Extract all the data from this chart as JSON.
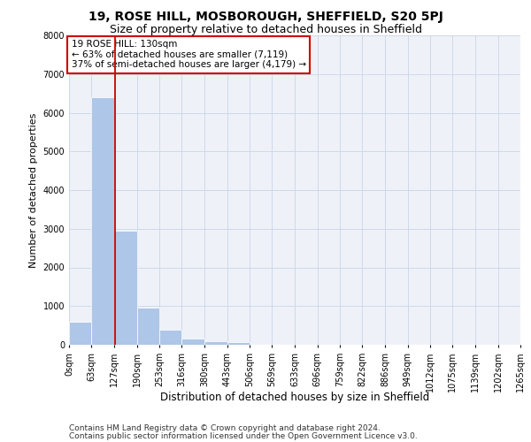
{
  "title_line1": "19, ROSE HILL, MOSBOROUGH, SHEFFIELD, S20 5PJ",
  "title_line2": "Size of property relative to detached houses in Sheffield",
  "xlabel": "Distribution of detached houses by size in Sheffield",
  "ylabel": "Number of detached properties",
  "bar_color": "#aec6e8",
  "grid_color": "#d0d8e8",
  "background_color": "#eef2f8",
  "vline_x": 130,
  "vline_color": "#cc0000",
  "bin_edges": [
    0,
    63,
    127,
    190,
    253,
    316,
    380,
    443,
    506,
    569,
    633,
    696,
    759,
    822,
    886,
    949,
    1012,
    1075,
    1139,
    1202,
    1265
  ],
  "bar_heights": [
    600,
    6400,
    2950,
    950,
    380,
    160,
    90,
    70,
    0,
    0,
    0,
    0,
    0,
    0,
    0,
    0,
    0,
    0,
    0,
    0
  ],
  "ylim": [
    0,
    8000
  ],
  "yticks": [
    0,
    1000,
    2000,
    3000,
    4000,
    5000,
    6000,
    7000,
    8000
  ],
  "annotation_title": "19 ROSE HILL: 130sqm",
  "annotation_line1": "← 63% of detached houses are smaller (7,119)",
  "annotation_line2": "37% of semi-detached houses are larger (4,179) →",
  "annotation_box_color": "#ffffff",
  "annotation_box_edge_color": "#cc0000",
  "footer_line1": "Contains HM Land Registry data © Crown copyright and database right 2024.",
  "footer_line2": "Contains public sector information licensed under the Open Government Licence v3.0.",
  "title_fontsize": 10,
  "subtitle_fontsize": 9,
  "tick_label_fontsize": 7,
  "ylabel_fontsize": 8,
  "xlabel_fontsize": 8.5,
  "annotation_fontsize": 7.5,
  "footer_fontsize": 6.5
}
